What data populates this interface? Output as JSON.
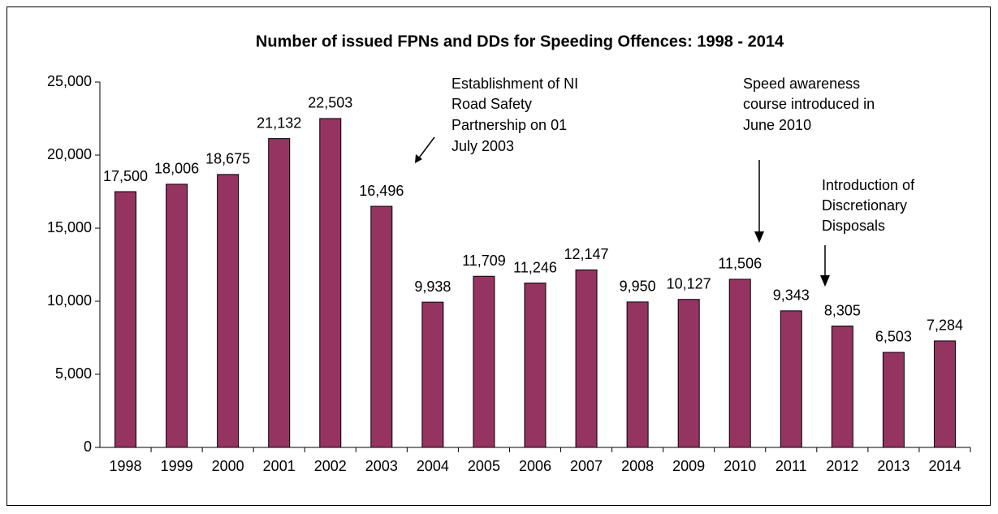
{
  "chart_data": {
    "type": "bar",
    "title": "Number of issued FPNs and DDs for Speeding Offences: 1998 - 2014",
    "categories": [
      "1998",
      "1999",
      "2000",
      "2001",
      "2002",
      "2003",
      "2004",
      "2005",
      "2006",
      "2007",
      "2008",
      "2009",
      "2010",
      "2011",
      "2012",
      "2013",
      "2014"
    ],
    "values": [
      17500,
      18006,
      18675,
      21132,
      22503,
      16496,
      9938,
      11709,
      11246,
      12147,
      9950,
      10127,
      11506,
      9343,
      8305,
      6503,
      7284
    ],
    "value_labels": [
      "17,500",
      "18,006",
      "18,675",
      "21,132",
      "22,503",
      "16,496",
      "9,938",
      "11,709",
      "11,246",
      "12,147",
      "9,950",
      "10,127",
      "11,506",
      "9,343",
      "8,305",
      "6,503",
      "7,284"
    ],
    "color": "#953461",
    "ylim": [
      0,
      25000
    ],
    "yticks": [
      0,
      {
        "value": 5000,
        "label": "5,000"
      },
      {
        "value": 10000,
        "label": "10,000"
      },
      {
        "value": 15000,
        "label": "15,000"
      },
      {
        "value": 20000,
        "label": "20,000"
      },
      {
        "value": 25000,
        "label": "25,000"
      }
    ],
    "grid": false,
    "annotations": [
      {
        "lines": [
          "Establishment of NI",
          "Road Safety",
          "Partnership on 01",
          "July 2003"
        ]
      },
      {
        "lines": [
          "Speed awareness",
          "course introduced in",
          "June 2010"
        ]
      },
      {
        "lines": [
          "Introduction of",
          "Discretionary",
          "Disposals"
        ]
      }
    ]
  }
}
